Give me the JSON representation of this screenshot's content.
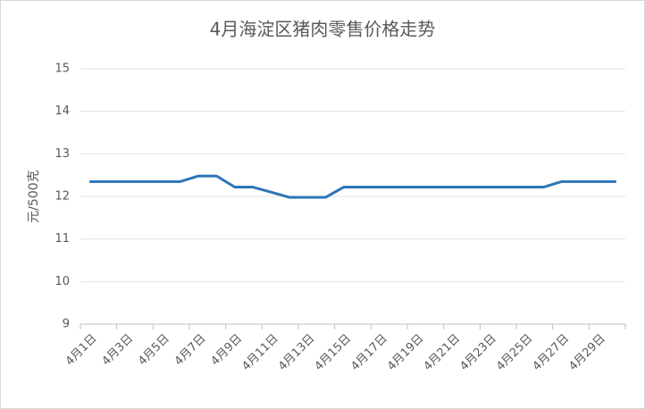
{
  "chart_data": {
    "type": "line",
    "title": "4月海淀区猪肉零售价格走势",
    "y_label": "元/500克",
    "categories": [
      "4月1日",
      null,
      "4月3日",
      null,
      "4月5日",
      null,
      "4月7日",
      null,
      "4月9日",
      null,
      "4月11日",
      null,
      "4月13日",
      null,
      "4月15日",
      null,
      "4月17日",
      null,
      "4月19日",
      null,
      "4月21日",
      null,
      "4月23日",
      null,
      "4月25日",
      null,
      "4月27日",
      null,
      "4月29日",
      null
    ],
    "values": [
      12.35,
      12.35,
      12.35,
      12.35,
      12.35,
      12.35,
      12.48,
      12.48,
      12.22,
      12.22,
      12.1,
      11.98,
      11.98,
      11.98,
      12.22,
      12.22,
      12.22,
      12.22,
      12.22,
      12.22,
      12.22,
      12.22,
      12.22,
      12.22,
      12.22,
      12.22,
      12.35,
      12.35,
      12.35,
      12.35
    ],
    "color": "#2e75b6",
    "ylim": [
      9,
      15
    ],
    "yticks": [
      9,
      10,
      11,
      12,
      13,
      14,
      15
    ],
    "grid": true
  }
}
